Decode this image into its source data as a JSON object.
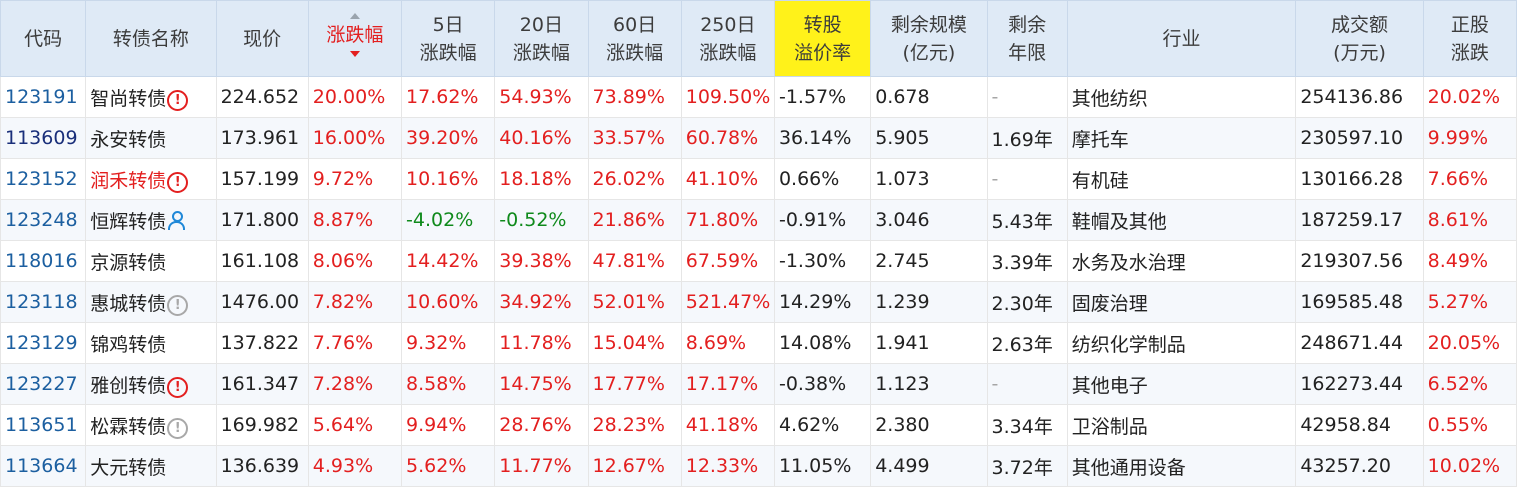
{
  "headers": {
    "code": "代码",
    "name": "转债名称",
    "price": "现价",
    "change": "涨跌幅",
    "d5_1": "5日",
    "d5_2": "涨跌幅",
    "d20_1": "20日",
    "d20_2": "涨跌幅",
    "d60_1": "60日",
    "d60_2": "涨跌幅",
    "d250_1": "250日",
    "d250_2": "涨跌幅",
    "premium_1": "转股",
    "premium_2": "溢价率",
    "scale_1": "剩余规模",
    "scale_2": "(亿元)",
    "years_1": "剩余",
    "years_2": "年限",
    "industry": "行业",
    "volume_1": "成交额",
    "volume_2": "(万元)",
    "stock_1": "正股",
    "stock_2": "涨跌"
  },
  "rows": [
    {
      "code": "123191",
      "name": "智尚转债",
      "price": "224.652",
      "change": "20.00%",
      "d5": "17.62%",
      "d20": "54.93%",
      "d60": "73.89%",
      "d250": "109.50%",
      "premium": "-1.57%",
      "scale": "0.678",
      "years": "-",
      "industry": "其他纺织",
      "volume": "254136.86",
      "stock": "20.02%"
    },
    {
      "code": "113609",
      "name": "永安转债",
      "price": "173.961",
      "change": "16.00%",
      "d5": "39.20%",
      "d20": "40.16%",
      "d60": "33.57%",
      "d250": "60.78%",
      "premium": "36.14%",
      "scale": "5.905",
      "years": "1.69年",
      "industry": "摩托车",
      "volume": "230597.10",
      "stock": "9.99%"
    },
    {
      "code": "123152",
      "name": "润禾转债",
      "price": "157.199",
      "change": "9.72%",
      "d5": "10.16%",
      "d20": "18.18%",
      "d60": "26.02%",
      "d250": "41.10%",
      "premium": "0.66%",
      "scale": "1.073",
      "years": "-",
      "industry": "有机硅",
      "volume": "130166.28",
      "stock": "7.66%"
    },
    {
      "code": "123248",
      "name": "恒辉转债",
      "price": "171.800",
      "change": "8.87%",
      "d5": "-4.02%",
      "d20": "-0.52%",
      "d60": "21.86%",
      "d250": "71.80%",
      "premium": "-0.91%",
      "scale": "3.046",
      "years": "5.43年",
      "industry": "鞋帽及其他",
      "volume": "187259.17",
      "stock": "8.61%"
    },
    {
      "code": "118016",
      "name": "京源转债",
      "price": "161.108",
      "change": "8.06%",
      "d5": "14.42%",
      "d20": "39.38%",
      "d60": "47.81%",
      "d250": "67.59%",
      "premium": "-1.30%",
      "scale": "2.745",
      "years": "3.39年",
      "industry": "水务及水治理",
      "volume": "219307.56",
      "stock": "8.49%"
    },
    {
      "code": "123118",
      "name": "惠城转债",
      "price": "1476.00",
      "change": "7.82%",
      "d5": "10.60%",
      "d20": "34.92%",
      "d60": "52.01%",
      "d250": "521.47%",
      "premium": "14.29%",
      "scale": "1.239",
      "years": "2.30年",
      "industry": "固废治理",
      "volume": "169585.48",
      "stock": "5.27%"
    },
    {
      "code": "123129",
      "name": "锦鸡转债",
      "price": "137.822",
      "change": "7.76%",
      "d5": "9.32%",
      "d20": "11.78%",
      "d60": "15.04%",
      "d250": "8.69%",
      "premium": "14.08%",
      "scale": "1.941",
      "years": "2.63年",
      "industry": "纺织化学制品",
      "volume": "248671.44",
      "stock": "20.05%"
    },
    {
      "code": "123227",
      "name": "雅创转债",
      "price": "161.347",
      "change": "7.28%",
      "d5": "8.58%",
      "d20": "14.75%",
      "d60": "17.77%",
      "d250": "17.17%",
      "premium": "-0.38%",
      "scale": "1.123",
      "years": "-",
      "industry": "其他电子",
      "volume": "162273.44",
      "stock": "6.52%"
    },
    {
      "code": "113651",
      "name": "松霖转债",
      "price": "169.982",
      "change": "5.64%",
      "d5": "9.94%",
      "d20": "28.76%",
      "d60": "28.23%",
      "d250": "41.18%",
      "premium": "4.62%",
      "scale": "2.380",
      "years": "3.34年",
      "industry": "卫浴制品",
      "volume": "42958.84",
      "stock": "0.55%"
    },
    {
      "code": "113664",
      "name": "大元转债",
      "price": "136.639",
      "change": "4.93%",
      "d5": "5.62%",
      "d20": "11.77%",
      "d60": "12.67%",
      "d250": "12.33%",
      "premium": "11.05%",
      "scale": "4.499",
      "years": "3.72年",
      "industry": "其他通用设备",
      "volume": "43257.20",
      "stock": "10.02%"
    }
  ],
  "icons": {
    "warn": "!",
    "info": "!"
  },
  "colors": {
    "red": "#e31f1f",
    "green": "#0f8a1b",
    "code": "#1c5fa0",
    "header_bg": "#dfeaf6",
    "highlight": "#fff21a"
  }
}
